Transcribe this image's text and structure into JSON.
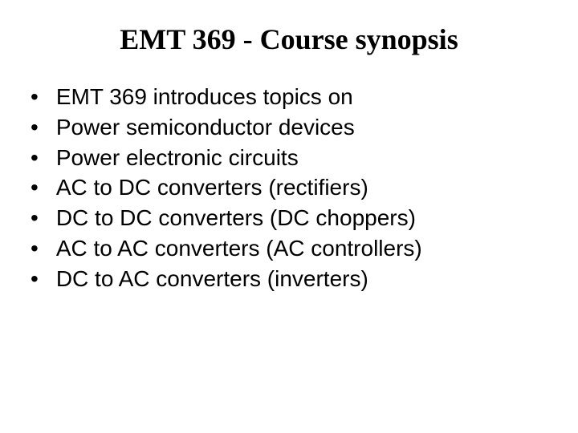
{
  "slide": {
    "title": "EMT 369 - Course synopsis",
    "title_fontsize": 36,
    "title_color": "#000000",
    "background_color": "#ffffff",
    "bullets": [
      "EMT 369 introduces topics on",
      "Power semiconductor devices",
      "Power electronic circuits",
      "AC to DC converters (rectifiers)",
      "DC to DC converters (DC choppers)",
      "AC to AC converters (AC controllers)",
      "DC to AC converters (inverters)"
    ],
    "bullet_fontsize": 28,
    "bullet_color": "#000000",
    "bullet_marker": "•"
  }
}
